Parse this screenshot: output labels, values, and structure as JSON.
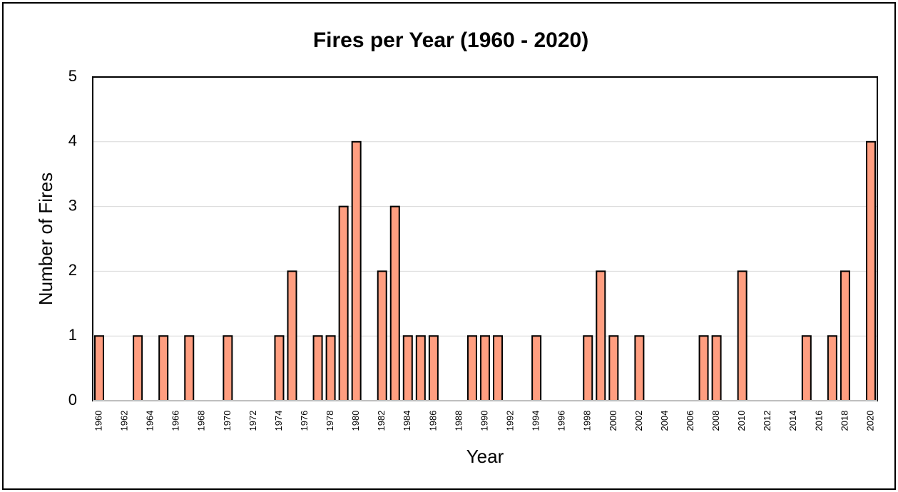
{
  "chart_data": {
    "type": "bar",
    "title": "Fires per Year (1960 - 2020)",
    "x_label": "Year",
    "y_label": "Number of Fires",
    "categories": [
      "1960",
      null,
      "1962",
      null,
      "1964",
      null,
      "1966",
      null,
      "1968",
      null,
      "1970",
      null,
      "1972",
      null,
      "1974",
      null,
      "1976",
      null,
      "1978",
      null,
      "1980",
      null,
      "1982",
      null,
      "1984",
      null,
      "1986",
      null,
      "1988",
      null,
      "1990",
      null,
      "1992",
      null,
      "1994",
      null,
      "1996",
      null,
      "1998",
      null,
      "2000",
      null,
      "2002",
      null,
      "2004",
      null,
      "2006",
      null,
      "2008",
      null,
      "2010",
      null,
      "2012",
      null,
      "2014",
      null,
      "2016",
      null,
      "2018",
      null,
      "2020"
    ],
    "values": [
      1,
      0,
      0,
      1,
      0,
      1,
      0,
      1,
      0,
      0,
      1,
      0,
      0,
      0,
      1,
      2,
      0,
      1,
      1,
      3,
      4,
      0,
      2,
      3,
      1,
      1,
      1,
      0,
      0,
      1,
      1,
      1,
      0,
      0,
      1,
      0,
      0,
      0,
      1,
      2,
      1,
      0,
      1,
      0,
      0,
      0,
      0,
      1,
      1,
      0,
      2,
      0,
      0,
      0,
      0,
      1,
      0,
      1,
      2,
      0,
      4
    ],
    "color": "#ff9e80",
    "ylim": [
      0,
      5
    ],
    "yticks": [
      0,
      1,
      2,
      3,
      4,
      5
    ],
    "grid": true
  }
}
